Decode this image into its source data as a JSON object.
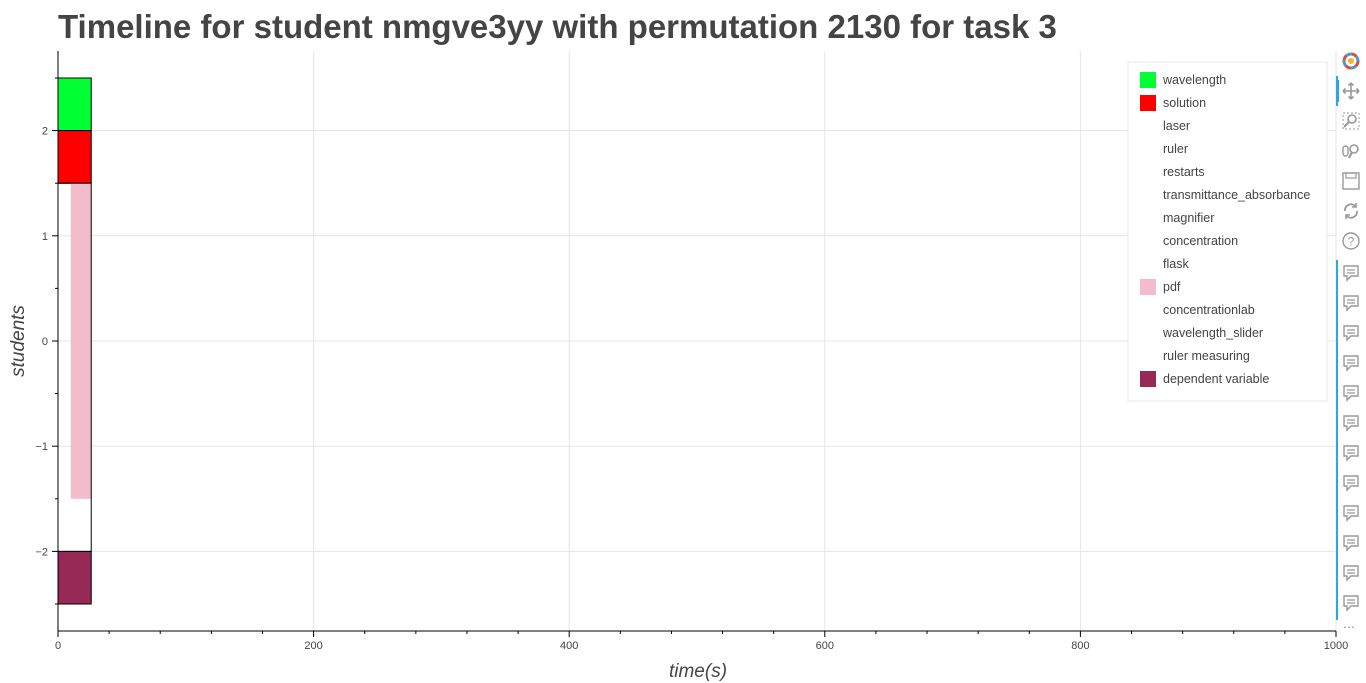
{
  "title": "Timeline for student nmgve3yy with permutation 2130 for task 3",
  "chart_data": {
    "type": "bar",
    "orientation": "horizontal-timeline",
    "title": "Timeline for student nmgve3yy with permutation 2130 for task 3",
    "xlabel": "time(s)",
    "ylabel": "students",
    "xlim": [
      0,
      1000
    ],
    "ylim": [
      -2.7,
      2.8
    ],
    "x_ticks": [
      0,
      200,
      400,
      600,
      800,
      1000
    ],
    "y_ticks": [
      -2,
      -1,
      0,
      1,
      2
    ],
    "grid": true,
    "legend_position": "top-right",
    "bars": [
      {
        "name": "wavelength",
        "x0": 0,
        "x1": 26,
        "y0": 2.0,
        "y1": 2.5,
        "color": "#00ff33"
      },
      {
        "name": "solution",
        "x0": 0,
        "x1": 26,
        "y0": 1.5,
        "y1": 2.0,
        "color": "#ff0000"
      },
      {
        "name": "pdf",
        "x0": 10,
        "x1": 26,
        "y0": -1.5,
        "y1": 1.5,
        "color": "#f2bccd"
      },
      {
        "name": "outline",
        "x0": 0,
        "x1": 26,
        "y0": -2.0,
        "y1": 1.5,
        "color": "none"
      },
      {
        "name": "dependent variable",
        "x0": 0,
        "x1": 26,
        "y0": -2.5,
        "y1": -2.0,
        "color": "#962955"
      }
    ],
    "legend": [
      {
        "label": "wavelength",
        "color": "#00ff33"
      },
      {
        "label": "solution",
        "color": "#ff0000"
      },
      {
        "label": "laser",
        "color": "#ffffff"
      },
      {
        "label": "ruler",
        "color": "#ffffff"
      },
      {
        "label": "restarts",
        "color": "#ffffff"
      },
      {
        "label": "transmittance_absorbance",
        "color": "#ffffff"
      },
      {
        "label": "magnifier",
        "color": "#ffffff"
      },
      {
        "label": "concentration",
        "color": "#ffffff"
      },
      {
        "label": "flask",
        "color": "#ffffff"
      },
      {
        "label": "pdf",
        "color": "#f2bccd"
      },
      {
        "label": "concentrationlab",
        "color": "#ffffff"
      },
      {
        "label": "wavelength_slider",
        "color": "#ffffff"
      },
      {
        "label": "ruler measuring",
        "color": "#ffffff"
      },
      {
        "label": "dependent variable",
        "color": "#962955"
      }
    ]
  },
  "toolbar": {
    "tools": [
      "bokeh-logo-icon",
      "pan-icon",
      "box-zoom-icon",
      "wheel-zoom-icon",
      "save-icon",
      "reset-icon",
      "help-icon",
      "hover-icon",
      "hover-icon",
      "hover-icon",
      "hover-icon",
      "hover-icon",
      "hover-icon",
      "hover-icon",
      "hover-icon",
      "hover-icon",
      "hover-icon",
      "hover-icon",
      "hover-icon"
    ],
    "more": "⋯"
  }
}
